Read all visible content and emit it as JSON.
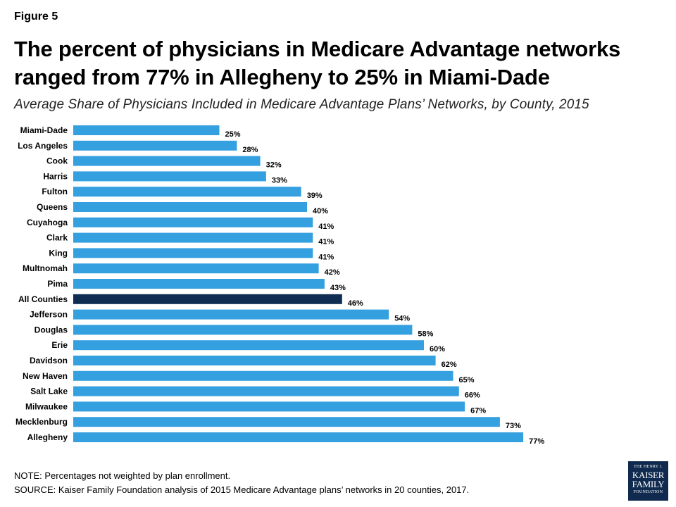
{
  "figure_label": "Figure 5",
  "title": "The percent of physicians in Medicare Advantage networks ranged from 77% in Allegheny to 25% in Miami-Dade",
  "subtitle": "Average Share of Physicians Included in Medicare Advantage Plans’ Networks, by County, 2015",
  "colors": {
    "bar": "#35a0e0",
    "highlight": "#0f2d52"
  },
  "chart_data": {
    "type": "bar",
    "orientation": "horizontal",
    "title": "Average Share of Physicians Included in Medicare Advantage Plans’ Networks, by County, 2015",
    "xlabel": "",
    "ylabel": "",
    "xlim": [
      0,
      100
    ],
    "value_suffix": "%",
    "highlight_category": "All Counties",
    "categories": [
      "Miami-Dade",
      "Los Angeles",
      "Cook",
      "Harris",
      "Fulton",
      "Queens",
      "Cuyahoga",
      "Clark",
      "King",
      "Multnomah",
      "Pima",
      "All Counties",
      "Jefferson",
      "Douglas",
      "Erie",
      "Davidson",
      "New Haven",
      "Salt Lake",
      "Milwaukee",
      "Mecklenburg",
      "Allegheny"
    ],
    "values": [
      25,
      28,
      32,
      33,
      39,
      40,
      41,
      41,
      41,
      42,
      43,
      46,
      54,
      58,
      60,
      62,
      65,
      66,
      67,
      73,
      77
    ]
  },
  "notes": {
    "note": "NOTE: Percentages not weighted by plan enrollment.",
    "source": "SOURCE: Kaiser Family Foundation analysis of 2015 Medicare Advantage plans’ networks in 20 counties, 2017."
  },
  "logo": {
    "line1": "THE HENRY J.",
    "line2": "KAISER",
    "line3": "FAMILY",
    "line4": "FOUNDATION"
  }
}
